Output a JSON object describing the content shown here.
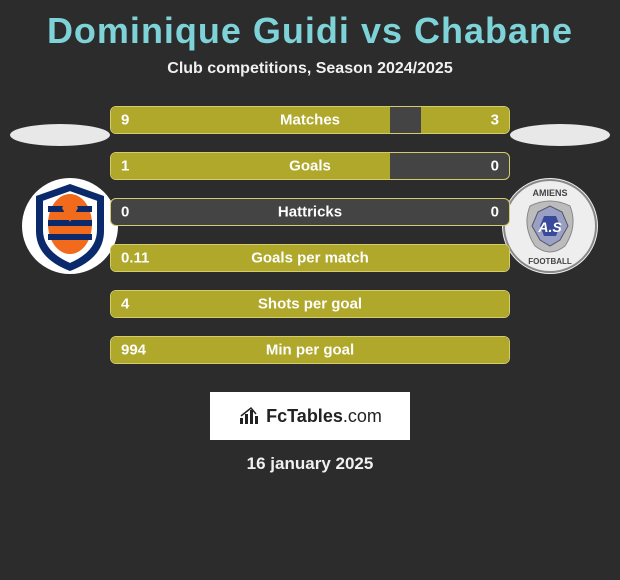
{
  "title": {
    "player1": "Dominique Guidi",
    "vs": "vs",
    "player2": "Chabane"
  },
  "subtitle": "Club competitions, Season 2024/2025",
  "colors": {
    "title_color": "#7dd3d8",
    "bar_fill": "#b0a82a",
    "bar_border": "#d4cc6a",
    "bar_bg": "#444444",
    "page_bg": "#2c2c2c"
  },
  "bars": [
    {
      "label": "Matches",
      "left_val": "9",
      "right_val": "3",
      "left_pct": 70,
      "right_pct": 22
    },
    {
      "label": "Goals",
      "left_val": "1",
      "right_val": "0",
      "left_pct": 70,
      "right_pct": 0
    },
    {
      "label": "Hattricks",
      "left_val": "0",
      "right_val": "0",
      "left_pct": 0,
      "right_pct": 0
    },
    {
      "label": "Goals per match",
      "left_val": "0.11",
      "right_val": "",
      "left_pct": 100,
      "right_pct": 0
    },
    {
      "label": "Shots per goal",
      "left_val": "4",
      "right_val": "",
      "left_pct": 100,
      "right_pct": 0
    },
    {
      "label": "Min per goal",
      "left_val": "994",
      "right_val": "",
      "left_pct": 100,
      "right_pct": 0
    }
  ],
  "footer_brand_bold": "FcTables",
  "footer_brand_thin": ".com",
  "date": "16 january 2025",
  "crest_left": {
    "bg": "#ffffff",
    "shield_stroke": "#0a2a6b",
    "accent": "#f26a1b"
  },
  "crest_right": {
    "bg": "#eeeeee",
    "top_text": "AMIENS",
    "bottom_text": "FOOTBALL"
  }
}
